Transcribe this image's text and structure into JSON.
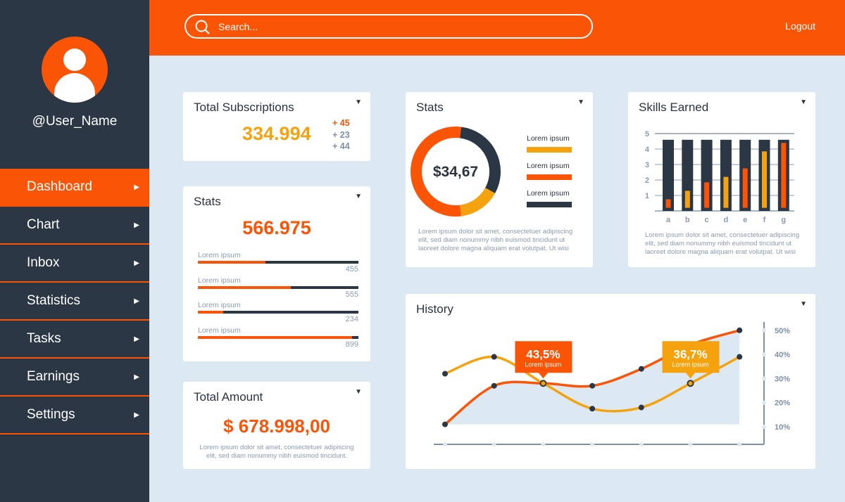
{
  "colors": {
    "accent": "#fa5407",
    "yellow": "#f5a20f",
    "dark": "#2b3744",
    "bg": "#dde9f2"
  },
  "user": {
    "name": "@User_Name"
  },
  "sidebar": {
    "items": [
      {
        "label": "Dashboard",
        "active": true
      },
      {
        "label": "Chart"
      },
      {
        "label": "Inbox"
      },
      {
        "label": "Statistics"
      },
      {
        "label": "Tasks"
      },
      {
        "label": "Earnings"
      },
      {
        "label": "Settings"
      }
    ]
  },
  "header": {
    "search_placeholder": "Search...",
    "logout": "Logout"
  },
  "subscriptions": {
    "title": "Total Subscriptions",
    "value": "334.994",
    "deltas": [
      "+ 45",
      "+ 23",
      "+ 44"
    ]
  },
  "stats": {
    "title": "Stats",
    "value": "566.975",
    "rows": [
      {
        "label": "Lorem ipsum",
        "value": "455",
        "fill": 0.42
      },
      {
        "label": "Lorem ipsum",
        "value": "555",
        "fill": 0.58
      },
      {
        "label": "Lorem ipsum",
        "value": "234",
        "fill": 0.16
      },
      {
        "label": "Lorem ipsum",
        "value": "899",
        "fill": 0.96
      }
    ]
  },
  "amount": {
    "title": "Total Amount",
    "value": "$ 678.998,00",
    "text": "Lorem ipsum dolor sit amet, consectetuer adipiscing elit, sed diam nonummy nibh euismod tincidunt."
  },
  "donut": {
    "title": "Stats",
    "center": "$34,67",
    "legend": [
      {
        "label": "Lorem ipsum",
        "color": "#f5a20f"
      },
      {
        "label": "Lorem ipsum",
        "color": "#fa5407"
      },
      {
        "label": "Lorem ipsum",
        "color": "#2b3744"
      }
    ],
    "segments": [
      {
        "color": "#2b3744",
        "share": 0.31
      },
      {
        "color": "#f5a20f",
        "share": 0.15
      },
      {
        "color": "#fa5407",
        "share": 0.54
      }
    ],
    "text": "Lorem ipsum dolor sit amet, consectetuer adipiscing elit, sed diam nonummy nibh euismod tincidunt ut laoreet dolore magna aliquam erat volutpat. Ut wisi"
  },
  "chart_data": [
    {
      "type": "bar",
      "title": "Skills Earned",
      "categories": [
        "a",
        "b",
        "c",
        "d",
        "e",
        "f",
        "g"
      ],
      "yticks": [
        "1",
        "2",
        "3",
        "4",
        "5"
      ],
      "ylim": [
        0,
        5
      ],
      "max_values": [
        4.6,
        4.6,
        4.6,
        4.6,
        4.6,
        4.6,
        4.6
      ],
      "values": [
        0.75,
        1.3,
        1.85,
        2.2,
        2.75,
        3.85,
        4.4
      ],
      "bar_colors": [
        "#fa5407",
        "#f5a20f",
        "#fa5407",
        "#f5a20f",
        "#fa5407",
        "#f5a20f",
        "#fa5407"
      ],
      "grid": true,
      "text": "Lorem ipsum dolor sit amet, consectetuer adipiscing elit, sed diam nonummy nibh euismod tincidunt ut laoreet dolore magna aliquam erat volutpat. Ut wisi"
    },
    {
      "type": "line",
      "title": "History",
      "yticks": [
        "10%",
        "20%",
        "30%",
        "40%",
        "50%"
      ],
      "ylim": [
        5,
        55
      ],
      "series": [
        {
          "color": "#fa5407",
          "values": [
            11,
            27,
            28,
            27,
            34,
            44,
            50
          ],
          "area": true
        },
        {
          "color": "#f5a20f",
          "values": [
            32,
            39,
            28,
            17.5,
            18,
            28,
            39
          ]
        }
      ],
      "callouts": [
        {
          "value": "43,5%",
          "label": "Lorem ipsum",
          "index": 2,
          "color": "#fa5407"
        },
        {
          "value": "36,7%",
          "label": "Lorem ipsum",
          "index": 5,
          "color": "#f5a20f"
        }
      ]
    }
  ]
}
